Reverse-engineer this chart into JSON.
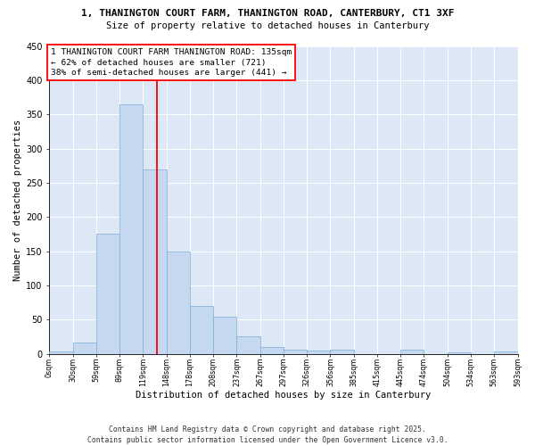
{
  "title_line1": "1, THANINGTON COURT FARM, THANINGTON ROAD, CANTERBURY, CT1 3XF",
  "title_line2": "Size of property relative to detached houses in Canterbury",
  "xlabel": "Distribution of detached houses by size in Canterbury",
  "ylabel": "Number of detached properties",
  "bin_left_edges": [
    0,
    29.5,
    59,
    88.5,
    118,
    147.5,
    177,
    206.5,
    236,
    265.5,
    295,
    324.5,
    354,
    383.5,
    413,
    442.5,
    472,
    501.5,
    531,
    560.5
  ],
  "bin_width": 29.5,
  "counts": [
    3,
    16,
    175,
    365,
    270,
    150,
    70,
    54,
    25,
    10,
    6,
    5,
    6,
    0,
    0,
    6,
    0,
    2,
    0,
    3
  ],
  "tick_labels": [
    "0sqm",
    "30sqm",
    "59sqm",
    "89sqm",
    "119sqm",
    "148sqm",
    "178sqm",
    "208sqm",
    "237sqm",
    "267sqm",
    "297sqm",
    "326sqm",
    "356sqm",
    "385sqm",
    "415sqm",
    "445sqm",
    "474sqm",
    "504sqm",
    "534sqm",
    "563sqm",
    "593sqm"
  ],
  "bar_facecolor": "#c5d8ef",
  "bar_edgecolor": "#7aaed6",
  "red_line_x": 135,
  "annot_line1": "1 THANINGTON COURT FARM THANINGTON ROAD: 135sqm",
  "annot_line2": "← 62% of detached houses are smaller (721)",
  "annot_line3": "38% of semi-detached houses are larger (441) →",
  "bg_color": "#dde8f6",
  "ylim": [
    0,
    450
  ],
  "yticks": [
    0,
    50,
    100,
    150,
    200,
    250,
    300,
    350,
    400,
    450
  ],
  "footer": "Contains HM Land Registry data © Crown copyright and database right 2025.\nContains public sector information licensed under the Open Government Licence v3.0.",
  "title_fontsize": 8.0,
  "subtitle_fontsize": 7.5,
  "ylabel_fontsize": 7.5,
  "xlabel_fontsize": 7.5,
  "tick_fontsize": 5.8,
  "ytick_fontsize": 7.0,
  "annot_fontsize": 6.8,
  "footer_fontsize": 5.8
}
